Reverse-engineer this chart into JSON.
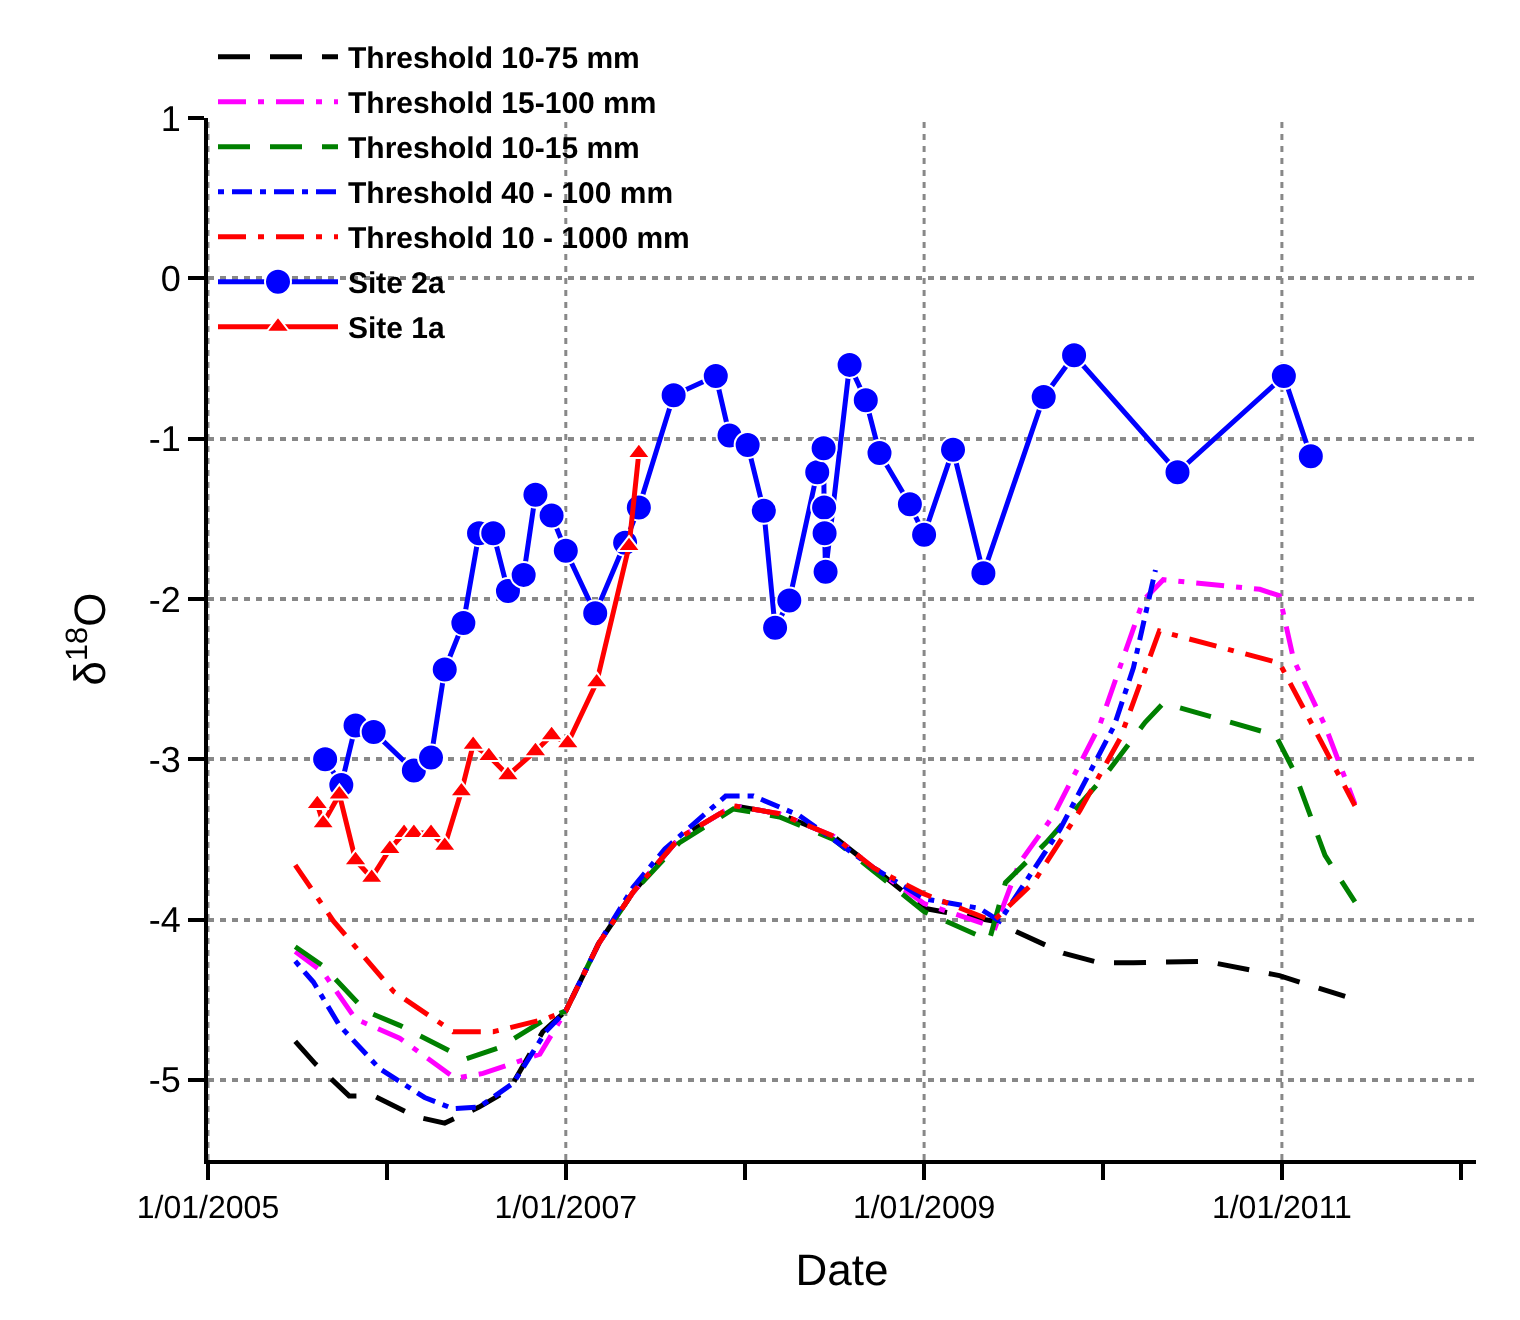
{
  "chart_data": {
    "type": "line",
    "xlabel": "Date",
    "ylabel": "δ$^{18}$O",
    "xlim": [
      "2005-01-01",
      "2012-02-01"
    ],
    "xticks": [
      {
        "value": "2005-01-01",
        "label": "1/01/2005"
      },
      {
        "value": "2006-01-01",
        "label": null
      },
      {
        "value": "2007-01-01",
        "label": "1/01/2007"
      },
      {
        "value": "2008-01-01",
        "label": null
      },
      {
        "value": "2009-01-01",
        "label": "1/01/2009"
      },
      {
        "value": "2010-01-01",
        "label": null
      },
      {
        "value": "2011-01-01",
        "label": "1/01/2011"
      },
      {
        "value": "2012-01-01",
        "label": null
      }
    ],
    "ylim": [
      -5.5,
      1
    ],
    "yticks": [
      -5,
      -4,
      -3,
      -2,
      -1,
      0,
      1
    ],
    "grid": true,
    "legend": "top left",
    "marker": "none",
    "series": [
      {
        "name": "Threshold 10-75 mm",
        "color": "#000000",
        "line_style": "dashed",
        "x": [
          "2005-06-28",
          "2005-08-08",
          "2005-10-16",
          "2005-12-05",
          "2006-03-01",
          "2006-04-29",
          "2006-07-08",
          "2006-09-08",
          "2006-11-15",
          "2007-01-01",
          "2007-03-09",
          "2007-05-18",
          "2007-08-21",
          "2007-12-09",
          "2008-03-12",
          "2008-06-30",
          "2008-09-21",
          "2009-01-01",
          "2009-05-22",
          "2009-10-12",
          "2009-12-25",
          "2010-03-04",
          "2010-07-29",
          "2010-12-27",
          "2011-05-10"
        ],
        "values": [
          -4.76,
          -4.9,
          -5.1,
          -5.1,
          -5.23,
          -5.27,
          -5.17,
          -5.06,
          -4.7,
          -4.57,
          -4.15,
          -3.83,
          -3.49,
          -3.29,
          -3.34,
          -3.48,
          -3.68,
          -3.93,
          -4.01,
          -4.21,
          -4.27,
          -4.27,
          -4.26,
          -4.35,
          -4.48
        ]
      },
      {
        "name": "Threshold 15-100 mm",
        "color": "#ff00ff",
        "line_style": "dashdot",
        "x": [
          "2005-06-28",
          "2005-08-24",
          "2005-10-29",
          "2006-01-27",
          "2006-05-20",
          "2006-07-16",
          "2006-11-09",
          "2007-01-01",
          "2007-03-09",
          "2007-05-18",
          "2007-08-21",
          "2007-12-09",
          "2008-03-12",
          "2008-06-30",
          "2008-09-21",
          "2009-01-01",
          "2009-05-26",
          "2009-07-14",
          "2009-09-22",
          "2009-12-25",
          "2010-03-24",
          "2010-05-04",
          "2010-11-17",
          "2010-12-27",
          "2011-01-25",
          "2011-03-30",
          "2011-05-30"
        ],
        "values": [
          -4.2,
          -4.33,
          -4.62,
          -4.74,
          -4.99,
          -4.96,
          -4.84,
          -4.57,
          -4.15,
          -3.83,
          -3.49,
          -3.29,
          -3.34,
          -3.48,
          -3.68,
          -3.9,
          -4.05,
          -3.65,
          -3.35,
          -2.79,
          -2.01,
          -1.88,
          -1.94,
          -1.98,
          -2.38,
          -2.79,
          -3.28
        ]
      },
      {
        "name": "Threshold 10-15 mm",
        "color": "#008000",
        "line_style": "dashed",
        "x": [
          "2005-06-28",
          "2005-08-24",
          "2005-11-18",
          "2006-01-27",
          "2006-06-10",
          "2006-08-18",
          "2006-11-21",
          "2007-01-01",
          "2007-03-09",
          "2007-05-18",
          "2007-08-21",
          "2007-12-09",
          "2008-03-12",
          "2008-06-30",
          "2008-09-21",
          "2009-01-01",
          "2009-05-14",
          "2009-06-16",
          "2009-09-07",
          "2010-01-03",
          "2010-03-28",
          "2010-05-04",
          "2010-12-19",
          "2011-01-25",
          "2011-03-30",
          "2011-05-30"
        ],
        "values": [
          -4.17,
          -4.29,
          -4.57,
          -4.66,
          -4.87,
          -4.8,
          -4.62,
          -4.57,
          -4.15,
          -3.83,
          -3.52,
          -3.31,
          -3.36,
          -3.5,
          -3.7,
          -3.95,
          -4.13,
          -3.77,
          -3.52,
          -3.11,
          -2.77,
          -2.65,
          -2.85,
          -3.07,
          -3.6,
          -3.89
        ]
      },
      {
        "name": "Threshold 40 - 100 mm",
        "color": "#0000ff",
        "line_style": "dotted",
        "x": [
          "2005-06-28",
          "2005-08-04",
          "2005-09-26",
          "2005-12-17",
          "2006-03-19",
          "2006-05-16",
          "2006-07-08",
          "2006-09-16",
          "2006-11-21",
          "2007-01-01",
          "2007-03-09",
          "2007-05-18",
          "2007-07-22",
          "2007-11-23",
          "2008-01-19",
          "2008-04-21",
          "2008-09-21",
          "2009-01-01",
          "2009-04-24",
          "2009-06-04",
          "2009-07-26",
          "2009-10-05",
          "2010-01-24",
          "2010-03-04",
          "2010-04-18"
        ],
        "values": [
          -4.26,
          -4.39,
          -4.66,
          -4.93,
          -5.11,
          -5.18,
          -5.17,
          -5.02,
          -4.7,
          -4.57,
          -4.15,
          -3.8,
          -3.56,
          -3.23,
          -3.23,
          -3.35,
          -3.68,
          -3.87,
          -3.93,
          -4.01,
          -3.77,
          -3.44,
          -2.79,
          -2.43,
          -1.82
        ]
      },
      {
        "name": "Threshold 10 - 1000 mm",
        "color": "#ff0000",
        "line_style": "dashdot",
        "x": [
          "2005-06-28",
          "2005-09-14",
          "2006-01-15",
          "2006-05-16",
          "2006-08-06",
          "2006-11-21",
          "2007-01-01",
          "2007-03-09",
          "2007-05-18",
          "2007-08-21",
          "2007-12-09",
          "2008-03-12",
          "2008-06-30",
          "2008-09-21",
          "2009-01-01",
          "2009-05-22",
          "2009-08-12",
          "2009-11-15",
          "2010-02-05",
          "2010-04-26",
          "2010-12-27",
          "2011-02-19",
          "2011-05-30"
        ],
        "values": [
          -3.66,
          -4.01,
          -4.45,
          -4.7,
          -4.7,
          -4.62,
          -4.57,
          -4.15,
          -3.83,
          -3.49,
          -3.29,
          -3.34,
          -3.48,
          -3.68,
          -3.84,
          -4.01,
          -3.77,
          -3.32,
          -2.87,
          -2.2,
          -2.4,
          -2.71,
          -3.29
        ]
      },
      {
        "name": "Site 2a",
        "color": "#0000ff",
        "line_style": "solid",
        "marker": "circle",
        "x": [
          "2005-08-28",
          "2005-09-30",
          "2005-10-29",
          "2005-12-05",
          "2006-02-25",
          "2006-04-01",
          "2006-04-29",
          "2006-06-06",
          "2006-07-08",
          "2006-08-06",
          "2006-09-05",
          "2006-10-07",
          "2006-10-31",
          "2006-12-03",
          "2007-01-01",
          "2007-03-02",
          "2007-05-02",
          "2007-05-30",
          "2007-08-09",
          "2007-11-03",
          "2007-12-01",
          "2008-01-07",
          "2008-02-09",
          "2008-03-03",
          "2008-04-01",
          "2008-05-28",
          "2008-06-10",
          "2008-06-11",
          "2008-06-12",
          "2008-06-14",
          "2008-08-02",
          "2008-09-04",
          "2008-10-02",
          "2008-12-03",
          "2009-01-01",
          "2009-03-01",
          "2009-05-02",
          "2009-09-02",
          "2009-11-03",
          "2010-06-02",
          "2011-01-05",
          "2011-03-01"
        ],
        "values": [
          -3.0,
          -3.16,
          -2.79,
          -2.83,
          -3.07,
          -2.99,
          -2.44,
          -2.15,
          -1.59,
          -1.59,
          -1.95,
          -1.85,
          -1.35,
          -1.48,
          -1.7,
          -2.09,
          -1.65,
          -1.43,
          -0.73,
          -0.61,
          -0.98,
          -1.04,
          -1.45,
          -2.18,
          -2.01,
          -1.21,
          -1.06,
          -1.43,
          -1.59,
          -1.83,
          -0.54,
          -0.76,
          -1.09,
          -1.41,
          -1.6,
          -1.07,
          -1.84,
          -0.74,
          -0.48,
          -1.21,
          -0.61,
          -1.11
        ]
      },
      {
        "name": "Site 1a",
        "color": "#ff0000",
        "line_style": "solid",
        "marker": "triangle",
        "x": [
          "2005-08-12",
          "2005-08-24",
          "2005-09-26",
          "2005-10-29",
          "2005-12-01",
          "2006-01-07",
          "2006-02-05",
          "2006-02-25",
          "2006-04-01",
          "2006-04-29",
          "2006-06-02",
          "2006-06-26",
          "2006-07-28",
          "2006-09-05",
          "2006-10-31",
          "2006-12-03",
          "2007-01-05",
          "2007-03-05",
          "2007-05-10",
          "2007-05-30"
        ],
        "values": [
          -3.28,
          -3.4,
          -3.22,
          -3.63,
          -3.74,
          -3.56,
          -3.46,
          -3.46,
          -3.46,
          -3.54,
          -3.2,
          -2.91,
          -2.98,
          -3.1,
          -2.95,
          -2.85,
          -2.9,
          -2.52,
          -1.67,
          -1.09
        ]
      }
    ]
  }
}
